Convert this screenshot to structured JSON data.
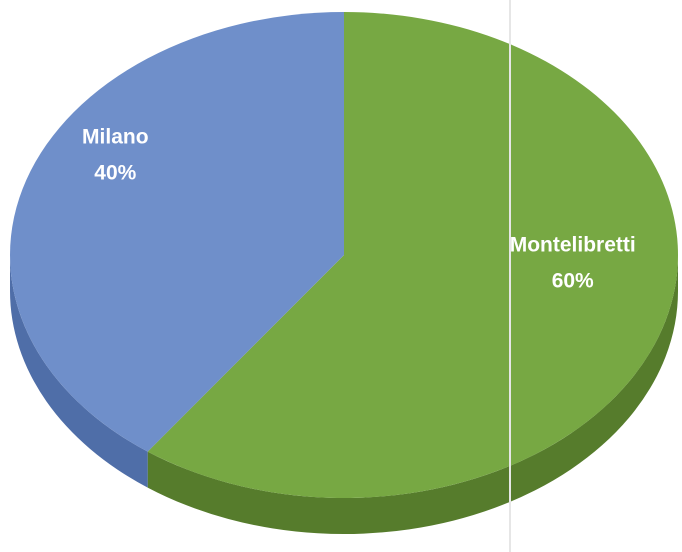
{
  "chart_data": {
    "type": "pie",
    "categories": [
      "Montelibretti",
      "Milano"
    ],
    "values": [
      60,
      40
    ],
    "value_labels": [
      "60%",
      "40%"
    ],
    "colors": [
      "#77a843",
      "#6f8fca"
    ],
    "side_colors": [
      "#567c2c",
      "#4f6ea8"
    ]
  }
}
